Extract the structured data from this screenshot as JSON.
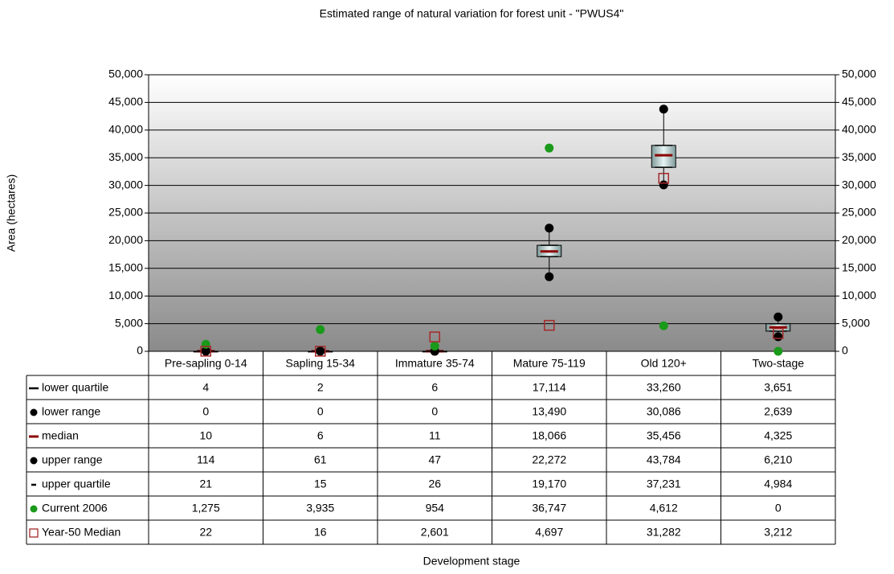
{
  "chart_data": {
    "type": "box",
    "title": "Estimated range of natural variation for forest unit - \"PWUS4\"",
    "x_label": "Development stage",
    "y_label": "Area (hectares)",
    "categories": [
      "Pre-sapling 0-14",
      "Sapling 15-34",
      "Immature 35-74",
      "Mature 75-119",
      "Old 120+",
      "Two-stage"
    ],
    "series": [
      {
        "name": "lower quartile",
        "color": "#000000",
        "marker": "dash",
        "values": [
          4,
          2,
          6,
          17114,
          33260,
          3651
        ],
        "value_labels": [
          "4",
          "2",
          "6",
          "17,114",
          "33,260",
          "3,651"
        ]
      },
      {
        "name": "lower range",
        "color": "#000000",
        "marker": "circle",
        "values": [
          0,
          0,
          0,
          13490,
          30086,
          2639
        ],
        "value_labels": [
          "0",
          "0",
          "0",
          "13,490",
          "30,086",
          "2,639"
        ]
      },
      {
        "name": "median",
        "color": "#8b0000",
        "marker": "dash",
        "values": [
          10,
          6,
          11,
          18066,
          35456,
          4325
        ],
        "value_labels": [
          "10",
          "6",
          "11",
          "18,066",
          "35,456",
          "4,325"
        ]
      },
      {
        "name": "upper range",
        "color": "#000000",
        "marker": "circle",
        "values": [
          114,
          61,
          47,
          22272,
          43784,
          6210
        ],
        "value_labels": [
          "114",
          "61",
          "47",
          "22,272",
          "43,784",
          "6,210"
        ]
      },
      {
        "name": "upper quartile",
        "color": "#000000",
        "marker": "dash",
        "values": [
          21,
          15,
          26,
          19170,
          37231,
          4984
        ],
        "value_labels": [
          "21",
          "15",
          "26",
          "19,170",
          "37,231",
          "4,984"
        ]
      },
      {
        "name": "Current 2006",
        "color": "#1a9a1a",
        "marker": "circle",
        "values": [
          1275,
          3935,
          954,
          36747,
          4612,
          0
        ],
        "value_labels": [
          "1,275",
          "3,935",
          "954",
          "36,747",
          "4,612",
          "0"
        ]
      },
      {
        "name": "Year-50 Median",
        "color": "#a52a2a",
        "marker": "square",
        "values": [
          22,
          16,
          2601,
          4697,
          31282,
          3212
        ],
        "value_labels": [
          "22",
          "16",
          "2,601",
          "4,697",
          "31,282",
          "3,212"
        ]
      }
    ],
    "ylim": [
      0,
      50000
    ],
    "yticks": [
      0,
      {
        "value": 5000,
        "label": "5,000"
      },
      {
        "value": 10000,
        "label": "10,000"
      },
      {
        "value": 15000,
        "label": "15,000"
      },
      {
        "value": 20000,
        "label": "20,000"
      },
      {
        "value": 25000,
        "label": "25,000"
      },
      {
        "value": 30000,
        "label": "30,000"
      },
      {
        "value": 35000,
        "label": "35,000"
      },
      {
        "value": 40000,
        "label": "40,000"
      },
      {
        "value": 45000,
        "label": "45,000"
      },
      {
        "value": 50000,
        "label": "50,000"
      }
    ],
    "y2lim": [
      0,
      50000
    ],
    "y2ticks": [
      0,
      {
        "value": 5000,
        "label": "5,000"
      },
      {
        "value": 10000,
        "label": "10,000"
      },
      {
        "value": 15000,
        "label": "15,000"
      },
      {
        "value": 20000,
        "label": "20,000"
      },
      {
        "value": 25000,
        "label": "25,000"
      },
      {
        "value": 30000,
        "label": "30,000"
      },
      {
        "value": 35000,
        "label": "35,000"
      },
      {
        "value": 40000,
        "label": "40,000"
      },
      {
        "value": 45000,
        "label": "45,000"
      },
      {
        "value": 50000,
        "label": "50,000"
      }
    ],
    "grid": true
  }
}
